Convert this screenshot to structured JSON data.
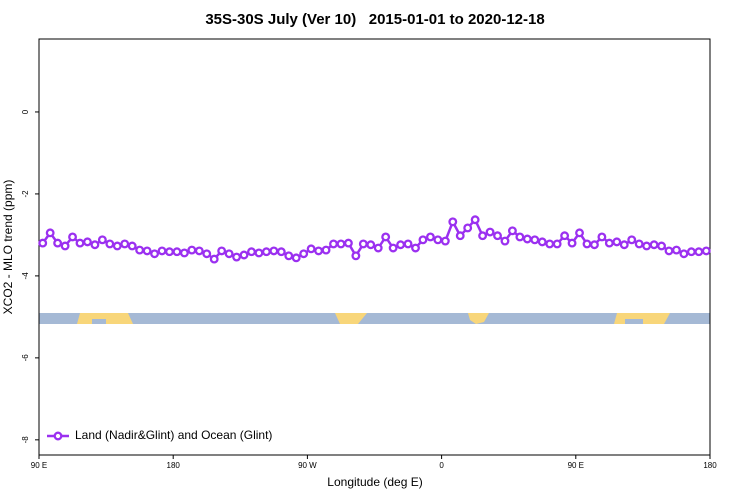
{
  "chart_data": {
    "type": "line",
    "title": "35S-30S July (Ver 10)   2015-01-01 to 2020-12-18",
    "xlabel": "Longitude (deg E)",
    "ylabel": "XCO2 - MLO trend (ppm)",
    "xlim": [
      90,
      540
    ],
    "ylim": [
      -8.37,
      1.78
    ],
    "xticks": [
      {
        "value": 90,
        "label": "90 E"
      },
      180,
      {
        "value": 270,
        "label": "90 W"
      },
      {
        "value": 360,
        "label": "0"
      },
      {
        "value": 450,
        "label": "90 E"
      },
      {
        "value": 540,
        "label": "180"
      }
    ],
    "yticks": [
      0,
      -2,
      -4,
      -6,
      -8
    ],
    "legend": "bottom-left",
    "x": [
      92.5,
      97.5,
      102.5,
      107.5,
      112.5,
      117.5,
      122.5,
      127.5,
      132.5,
      137.5,
      142.5,
      147.5,
      152.5,
      157.5,
      162.5,
      167.5,
      172.5,
      177.5,
      182.5,
      187.5,
      192.5,
      197.5,
      202.5,
      207.5,
      212.5,
      217.5,
      222.5,
      227.5,
      232.5,
      237.5,
      242.5,
      247.5,
      252.5,
      257.5,
      262.5,
      267.5,
      272.5,
      277.5,
      282.5,
      287.5,
      292.5,
      297.5,
      302.5,
      307.5,
      312.5,
      317.5,
      322.5,
      327.5,
      332.5,
      337.5,
      342.5,
      347.5,
      352.5,
      357.5,
      362.5,
      367.5,
      372.5,
      377.5,
      382.5,
      387.5,
      392.5,
      397.5,
      402.5,
      407.5,
      412.5,
      417.5,
      422.5,
      427.5,
      432.5,
      437.5,
      442.5,
      447.5,
      452.5,
      457.5,
      462.5,
      467.5,
      472.5,
      477.5,
      482.5,
      487.5,
      492.5,
      497.5,
      502.5,
      507.5,
      512.5,
      517.5,
      522.5,
      527.5,
      532.5,
      537.5
    ],
    "series": [
      {
        "name": "Land (Nadir&Glint) and Ocean (Glint)",
        "color": "#9b30f0",
        "values": [
          -3.2,
          -2.95,
          -3.2,
          -3.27,
          -3.05,
          -3.2,
          -3.17,
          -3.24,
          -3.12,
          -3.22,
          -3.27,
          -3.22,
          -3.27,
          -3.37,
          -3.39,
          -3.46,
          -3.39,
          -3.41,
          -3.41,
          -3.44,
          -3.37,
          -3.39,
          -3.46,
          -3.59,
          -3.39,
          -3.46,
          -3.54,
          -3.49,
          -3.41,
          -3.44,
          -3.41,
          -3.39,
          -3.41,
          -3.51,
          -3.56,
          -3.46,
          -3.34,
          -3.39,
          -3.37,
          -3.22,
          -3.22,
          -3.2,
          -3.51,
          -3.22,
          -3.24,
          -3.32,
          -3.05,
          -3.32,
          -3.24,
          -3.22,
          -3.32,
          -3.12,
          -3.05,
          -3.12,
          -3.15,
          -2.68,
          -3.02,
          -2.83,
          -2.63,
          -3.02,
          -2.93,
          -3.02,
          -3.15,
          -2.9,
          -3.05,
          -3.1,
          -3.12,
          -3.17,
          -3.22,
          -3.22,
          -3.02,
          -3.2,
          -2.95,
          -3.22,
          -3.24,
          -3.05,
          -3.2,
          -3.17,
          -3.24,
          -3.12,
          -3.22,
          -3.27,
          -3.24,
          -3.27,
          -3.39,
          -3.37,
          -3.46,
          -3.41,
          -3.41,
          -3.39
        ]
      }
    ]
  }
}
